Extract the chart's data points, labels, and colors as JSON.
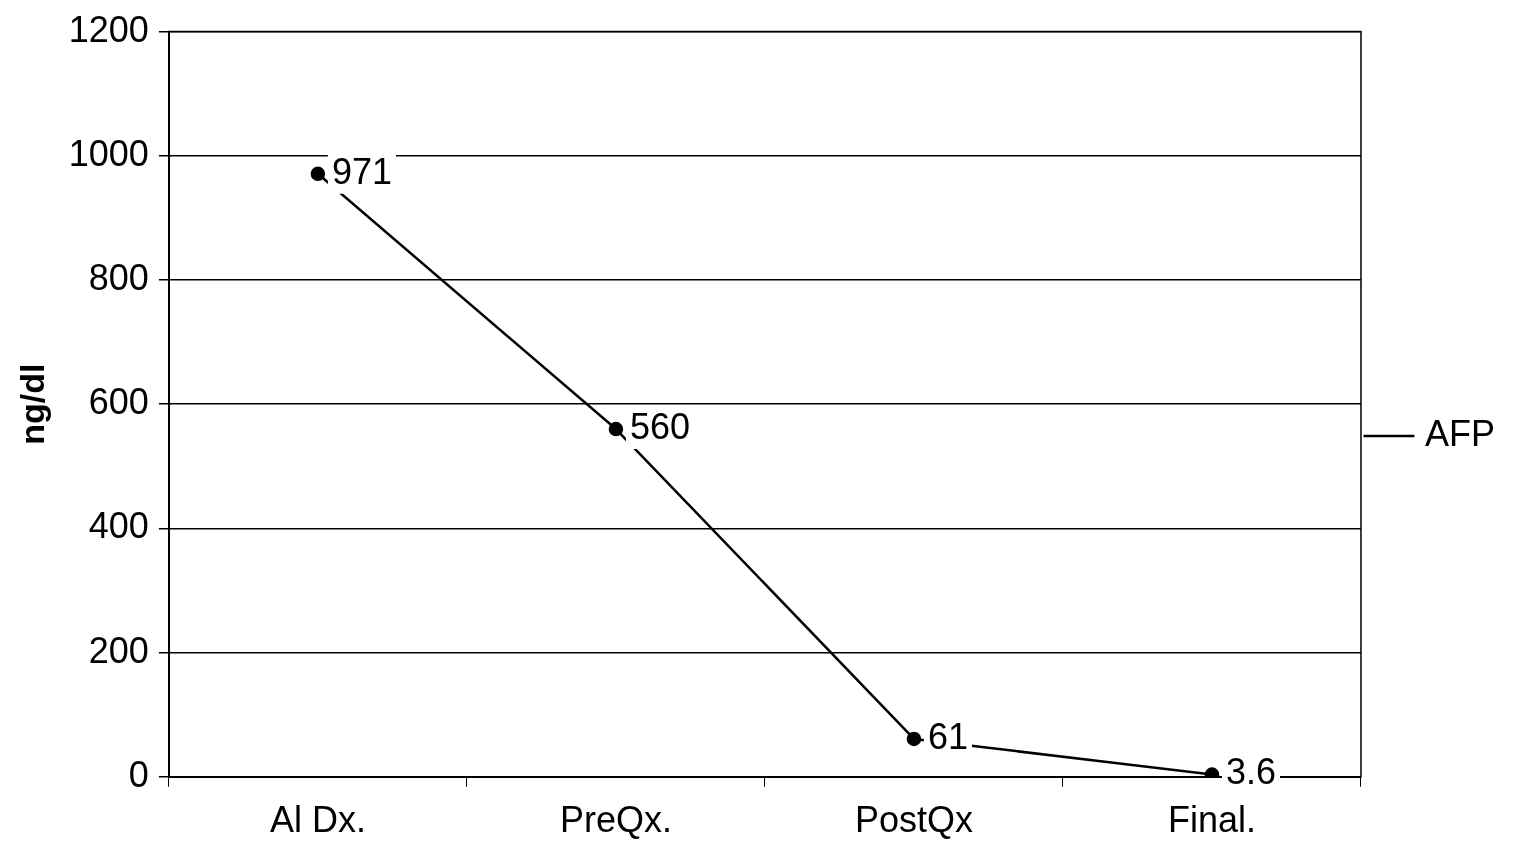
{
  "chart_data": {
    "type": "line",
    "ylabel": "ng/dl",
    "categories": [
      "Al Dx.",
      "PreQx.",
      "PostQx",
      "Final."
    ],
    "series": [
      {
        "name": "AFP",
        "color": "#000000",
        "values": [
          971,
          560,
          61,
          3.6
        ]
      }
    ],
    "ylim": [
      0,
      1200
    ],
    "yticks": [
      0,
      200,
      400,
      600,
      800,
      1000,
      1200
    ],
    "grid": "y",
    "legend": "right",
    "marker": "circle",
    "line_style": "solid",
    "data_labels": true
  }
}
